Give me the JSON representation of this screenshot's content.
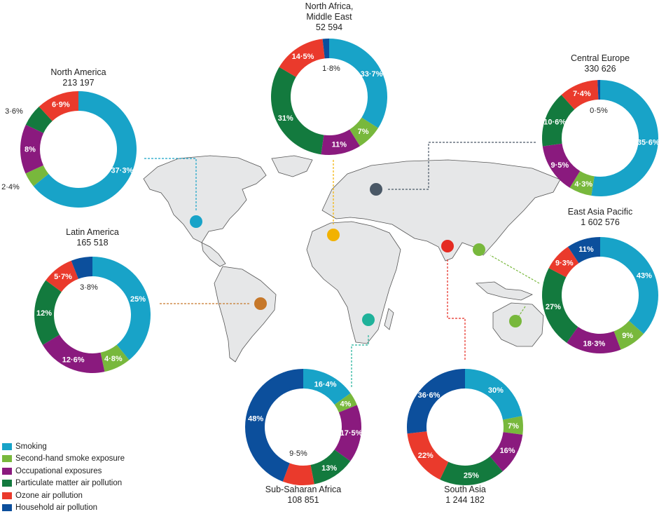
{
  "colors": {
    "Smoking": "#18a3c8",
    "Second-hand smoke exposure": "#78b83c",
    "Occupational exposures": "#8a1a7e",
    "Particulate matter air pollution": "#137a3e",
    "Ozone air pollution": "#ea3a2c",
    "Household air pollution": "#0c4f9c"
  },
  "legend": [
    {
      "label": "Smoking",
      "color": "#18a3c8"
    },
    {
      "label": "Second-hand smoke exposure",
      "color": "#78b83c"
    },
    {
      "label": "Occupational exposures",
      "color": "#8a1a7e"
    },
    {
      "label": "Particulate matter air pollution",
      "color": "#137a3e"
    },
    {
      "label": "Ozone air pollution",
      "color": "#ea3a2c"
    },
    {
      "label": "Household air pollution",
      "color": "#0c4f9c"
    }
  ],
  "chart_data": {
    "type": "pie",
    "title": "",
    "categories": [
      "Smoking",
      "Second-hand smoke exposure",
      "Occupational exposures",
      "Particulate matter air pollution",
      "Ozone air pollution",
      "Household air pollution"
    ],
    "regions": [
      {
        "name": "North Africa, Middle East",
        "name_lines": [
          "North Africa,",
          "Middle East"
        ],
        "total": "52 594",
        "marker_color": "#f2b200",
        "values": [
          33.7,
          7,
          11,
          31,
          14.5,
          1.8
        ],
        "labels": [
          "33·7%",
          "7%",
          "11%",
          "31%",
          "14·5%",
          "1·8%"
        ]
      },
      {
        "name": "North America",
        "name_lines": [
          "North America"
        ],
        "total": "213 197",
        "marker_color": "#18a3c8",
        "values": [
          37.3,
          2.4,
          8,
          3.6,
          6.9,
          0
        ],
        "labels": [
          "37·3%",
          "2·4%",
          "8%",
          "3·6%",
          "6·9%",
          ""
        ]
      },
      {
        "name": "Central Europe",
        "name_lines": [
          "Central Europe"
        ],
        "total": "330 626",
        "marker_color": "#4a5866",
        "values": [
          35.6,
          4.3,
          9.5,
          10.6,
          7.4,
          0.5
        ],
        "labels": [
          "35·6%",
          "4·3%",
          "9·5%",
          "10·6%",
          "7·4%",
          "0·5%"
        ]
      },
      {
        "name": "Latin America",
        "name_lines": [
          "Latin America"
        ],
        "total": "165 518",
        "marker_color": "#c6782a",
        "values": [
          25,
          4.8,
          12.6,
          12,
          5.7,
          3.8
        ],
        "labels": [
          "25%",
          "4·8%",
          "12·6%",
          "12%",
          "5·7%",
          "3·8%"
        ]
      },
      {
        "name": "East Asia Pacific",
        "name_lines": [
          "East Asia Pacific"
        ],
        "total": "1 602 576",
        "marker_color": "#78b83c",
        "values": [
          43,
          9,
          18.3,
          27,
          9.3,
          11
        ],
        "labels": [
          "43%",
          "9%",
          "18·3%",
          "27%",
          "9·3%",
          "11%"
        ]
      },
      {
        "name": "Sub-Saharan Africa",
        "name_lines": [
          "Sub-Saharan Africa"
        ],
        "total": "108 851",
        "marker_color": "#1fb29a",
        "values": [
          16.4,
          4,
          17.5,
          13,
          9.5,
          48
        ],
        "labels": [
          "16·4%",
          "4%",
          "17·5%",
          "13%",
          "9·5%",
          "48%"
        ]
      },
      {
        "name": "South Asia",
        "name_lines": [
          "South Asia"
        ],
        "total": "1 244 182",
        "marker_color": "#e52b22",
        "values": [
          30,
          7,
          16,
          25,
          22,
          36.6
        ],
        "labels": [
          "30%",
          "7%",
          "16%",
          "25%",
          "22%",
          "36·6%"
        ]
      }
    ]
  }
}
